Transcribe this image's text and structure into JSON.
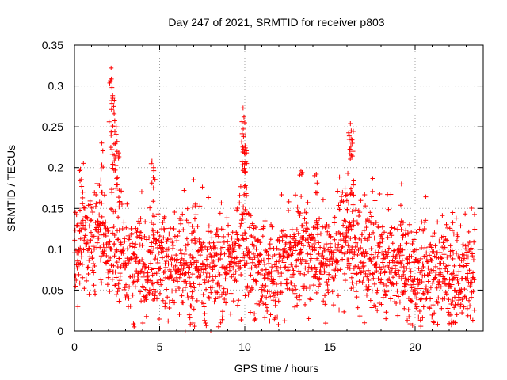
{
  "chart_data": {
    "type": "scatter",
    "title": "Day 247 of 2021, SRMTID for receiver p803",
    "xlabel": "GPS time / hours",
    "ylabel": "SRMTID / TECUs",
    "xlim": [
      0,
      24
    ],
    "ylim": [
      0,
      0.35
    ],
    "grid": true,
    "marker": "plus",
    "color": "#ff0000",
    "x_ticks": [
      0,
      5,
      10,
      15,
      20
    ],
    "x_tick_labels": [
      "0",
      "5",
      "10",
      "15",
      "20"
    ],
    "y_ticks": [
      0,
      0.05,
      0.1,
      0.15,
      0.2,
      0.25,
      0.3,
      0.35
    ],
    "y_tick_labels": [
      "0",
      "0.05",
      "0.1",
      "0.15",
      "0.2",
      "0.25",
      "0.3",
      "0.35"
    ],
    "series": [
      {
        "name": "SRMTID",
        "x_range": [
          0,
          23.5
        ],
        "sample_interval_hours": 0.0125,
        "baseline": [
          {
            "x": 0,
            "y": 0.095
          },
          {
            "x": 1.5,
            "y": 0.11
          },
          {
            "x": 3,
            "y": 0.085
          },
          {
            "x": 4,
            "y": 0.065
          },
          {
            "x": 5,
            "y": 0.08
          },
          {
            "x": 6,
            "y": 0.075
          },
          {
            "x": 7,
            "y": 0.07
          },
          {
            "x": 8,
            "y": 0.075
          },
          {
            "x": 9,
            "y": 0.075
          },
          {
            "x": 10,
            "y": 0.08
          },
          {
            "x": 11,
            "y": 0.075
          },
          {
            "x": 12,
            "y": 0.075
          },
          {
            "x": 13,
            "y": 0.085
          },
          {
            "x": 14,
            "y": 0.095
          },
          {
            "x": 15,
            "y": 0.08
          },
          {
            "x": 16,
            "y": 0.095
          },
          {
            "x": 17,
            "y": 0.09
          },
          {
            "x": 18,
            "y": 0.07
          },
          {
            "x": 19,
            "y": 0.065
          },
          {
            "x": 20,
            "y": 0.065
          },
          {
            "x": 21,
            "y": 0.065
          },
          {
            "x": 22,
            "y": 0.06
          },
          {
            "x": 23.5,
            "y": 0.075
          }
        ],
        "spread": 0.03,
        "peaks": [
          {
            "x": 0.35,
            "y": 0.198
          },
          {
            "x": 1.6,
            "y": 0.23
          },
          {
            "x": 2.15,
            "y": 0.322
          },
          {
            "x": 2.2,
            "y": 0.298
          },
          {
            "x": 2.25,
            "y": 0.285
          },
          {
            "x": 2.3,
            "y": 0.275
          },
          {
            "x": 2.45,
            "y": 0.25
          },
          {
            "x": 2.5,
            "y": 0.232
          },
          {
            "x": 2.6,
            "y": 0.218
          },
          {
            "x": 4.55,
            "y": 0.208
          },
          {
            "x": 4.65,
            "y": 0.2
          },
          {
            "x": 7.0,
            "y": 0.185
          },
          {
            "x": 9.9,
            "y": 0.273
          },
          {
            "x": 9.95,
            "y": 0.262
          },
          {
            "x": 10.0,
            "y": 0.255
          },
          {
            "x": 10.05,
            "y": 0.24
          },
          {
            "x": 10.1,
            "y": 0.218
          },
          {
            "x": 13.3,
            "y": 0.196
          },
          {
            "x": 14.2,
            "y": 0.192
          },
          {
            "x": 16.05,
            "y": 0.193
          },
          {
            "x": 16.2,
            "y": 0.254
          },
          {
            "x": 16.25,
            "y": 0.245
          },
          {
            "x": 16.3,
            "y": 0.234
          },
          {
            "x": 16.35,
            "y": 0.22
          },
          {
            "x": 19.2,
            "y": 0.18
          },
          {
            "x": 22.2,
            "y": 0.145
          }
        ],
        "lows": [
          {
            "x": 3.5,
            "y": 0.005
          },
          {
            "x": 5.5,
            "y": 0.012
          },
          {
            "x": 6.5,
            "y": 0.0
          },
          {
            "x": 8.0,
            "y": 0.0
          },
          {
            "x": 6.8,
            "y": 0.008
          },
          {
            "x": 22.0,
            "y": 0.009
          }
        ]
      }
    ]
  }
}
